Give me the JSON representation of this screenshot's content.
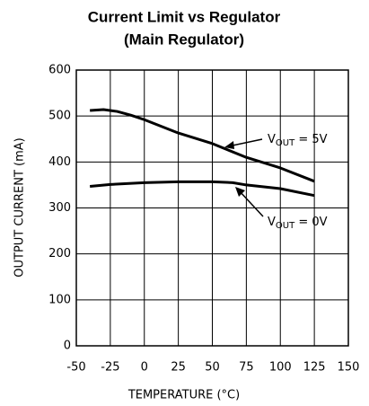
{
  "chart_data": {
    "type": "line",
    "title": [
      "Current Limit vs Regulator",
      "(Main Regulator)"
    ],
    "x_label": "TEMPERATURE (°C)",
    "y_label": "OUTPUT CURRENT (mA)",
    "xlim": [
      -50,
      150
    ],
    "xticks": [
      -50,
      -25,
      0,
      25,
      50,
      75,
      100,
      125,
      150
    ],
    "ylim": [
      0,
      600
    ],
    "yticks": [
      0,
      100,
      200,
      300,
      400,
      500,
      600
    ],
    "grid": true,
    "series": [
      {
        "name": "5V",
        "color": "#000000",
        "x": [
          -40,
          -30,
          -20,
          -10,
          0,
          25,
          50,
          75,
          100,
          125
        ],
        "values": [
          512,
          514,
          510,
          502,
          492,
          463,
          440,
          410,
          387,
          358
        ]
      },
      {
        "name": "0V",
        "color": "#000000",
        "x": [
          -40,
          -25,
          0,
          25,
          50,
          65,
          75,
          100,
          125
        ],
        "values": [
          347,
          351,
          355,
          357,
          357,
          355,
          350,
          342,
          327
        ]
      }
    ],
    "annotations": [
      {
        "parts": [
          "V",
          "OUT",
          " = 5V"
        ]
      },
      {
        "parts": [
          "V",
          "OUT",
          " = 0V"
        ]
      }
    ]
  }
}
